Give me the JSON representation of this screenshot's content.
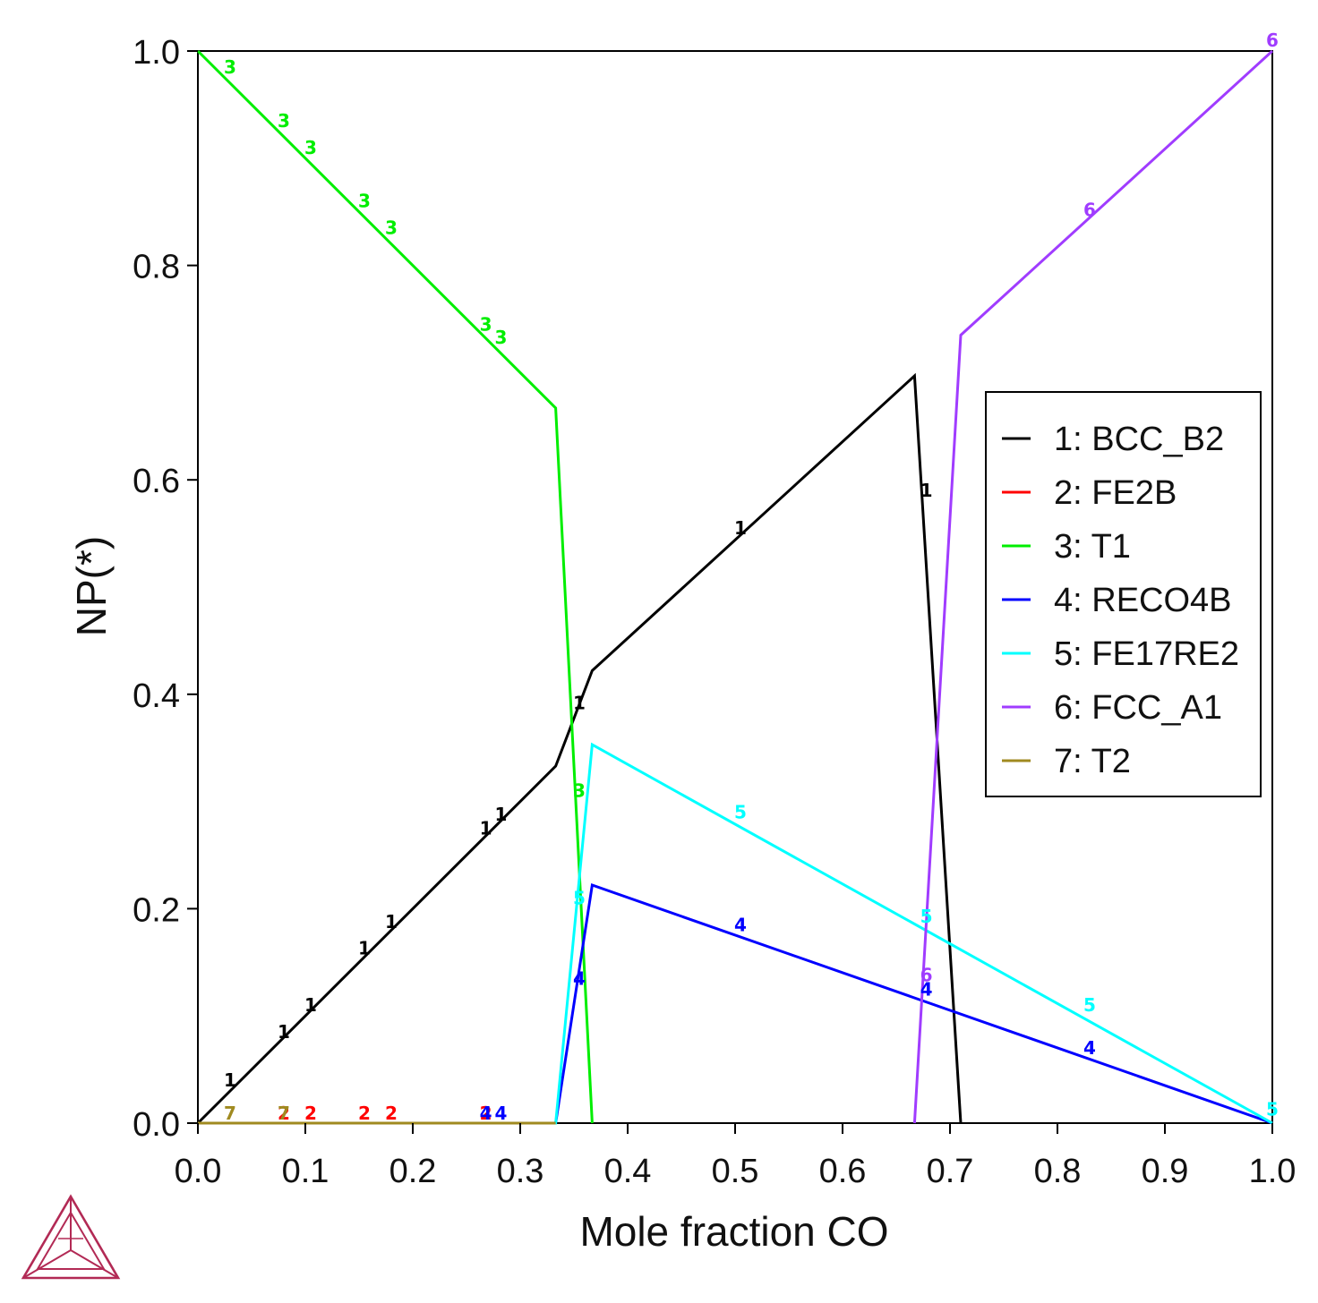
{
  "chart_data": {
    "type": "line",
    "title": "",
    "xlabel": "Mole fraction CO",
    "ylabel": "NP(*)",
    "xlim": [
      0,
      1
    ],
    "ylim": [
      0,
      1
    ],
    "xticks": [
      "0.0",
      "0.1",
      "0.2",
      "0.3",
      "0.4",
      "0.5",
      "0.6",
      "0.7",
      "0.8",
      "0.9",
      "1.0"
    ],
    "yticks": [
      "0.0",
      "0.2",
      "0.4",
      "0.6",
      "0.8",
      "1.0"
    ],
    "grid": false,
    "legend_position": "right",
    "series": [
      {
        "id": "1",
        "name": "1: BCC_B2",
        "color": "#000000",
        "points": [
          [
            0,
            0
          ],
          [
            0.333,
            0.333
          ],
          [
            0.367,
            0.422
          ],
          [
            0.667,
            0.697
          ],
          [
            0.71,
            0
          ]
        ],
        "labels": [
          [
            0.03,
            0.04
          ],
          [
            0.08,
            0.085
          ],
          [
            0.105,
            0.11
          ],
          [
            0.155,
            0.163
          ],
          [
            0.18,
            0.188
          ],
          [
            0.268,
            0.275
          ],
          [
            0.282,
            0.288
          ],
          [
            0.355,
            0.392
          ],
          [
            0.505,
            0.555
          ],
          [
            0.678,
            0.59
          ]
        ]
      },
      {
        "id": "2",
        "name": "2: FE2B",
        "color": "#ff0000",
        "points": [
          [
            0,
            0
          ],
          [
            0.333,
            0
          ]
        ],
        "labels": [
          [
            0.08,
            0.009
          ],
          [
            0.105,
            0.009
          ],
          [
            0.155,
            0.009
          ],
          [
            0.18,
            0.009
          ],
          [
            0.268,
            0.009
          ]
        ]
      },
      {
        "id": "3",
        "name": "3: T1",
        "color": "#00ee00",
        "points": [
          [
            0,
            1
          ],
          [
            0.333,
            0.667
          ],
          [
            0.367,
            0
          ]
        ],
        "labels": [
          [
            0.03,
            0.985
          ],
          [
            0.08,
            0.935
          ],
          [
            0.105,
            0.91
          ],
          [
            0.155,
            0.86
          ],
          [
            0.18,
            0.835
          ],
          [
            0.268,
            0.745
          ],
          [
            0.282,
            0.733
          ],
          [
            0.355,
            0.31
          ]
        ]
      },
      {
        "id": "4",
        "name": "4: RECO4B",
        "color": "#0000ff",
        "points": [
          [
            0,
            0
          ],
          [
            0.333,
            0
          ],
          [
            0.367,
            0.222
          ],
          [
            1,
            0
          ]
        ],
        "labels": [
          [
            0.268,
            0.009
          ],
          [
            0.282,
            0.009
          ],
          [
            0.355,
            0.135
          ],
          [
            0.505,
            0.185
          ],
          [
            0.678,
            0.125
          ],
          [
            0.83,
            0.07
          ]
        ]
      },
      {
        "id": "5",
        "name": "5: FE17RE2",
        "color": "#00ffff",
        "points": [
          [
            0,
            0
          ],
          [
            0.333,
            0
          ],
          [
            0.367,
            0.353
          ],
          [
            1,
            0
          ]
        ],
        "labels": [
          [
            0.355,
            0.21
          ],
          [
            0.505,
            0.29
          ],
          [
            0.678,
            0.193
          ],
          [
            0.83,
            0.11
          ],
          [
            1.0,
            0.013
          ]
        ]
      },
      {
        "id": "6",
        "name": "6: FCC_A1",
        "color": "#a03cff",
        "points": [
          [
            0.667,
            0
          ],
          [
            0.71,
            0.735
          ],
          [
            1,
            1
          ]
        ],
        "labels": [
          [
            0.678,
            0.138
          ],
          [
            0.83,
            0.852
          ],
          [
            1.0,
            1.01
          ]
        ]
      },
      {
        "id": "7",
        "name": "7: T2",
        "color": "#a08a20",
        "points": [
          [
            0,
            0
          ],
          [
            0.333,
            0
          ]
        ],
        "labels": [
          [
            0.03,
            0.009
          ],
          [
            0.08,
            0.009
          ]
        ]
      }
    ]
  }
}
